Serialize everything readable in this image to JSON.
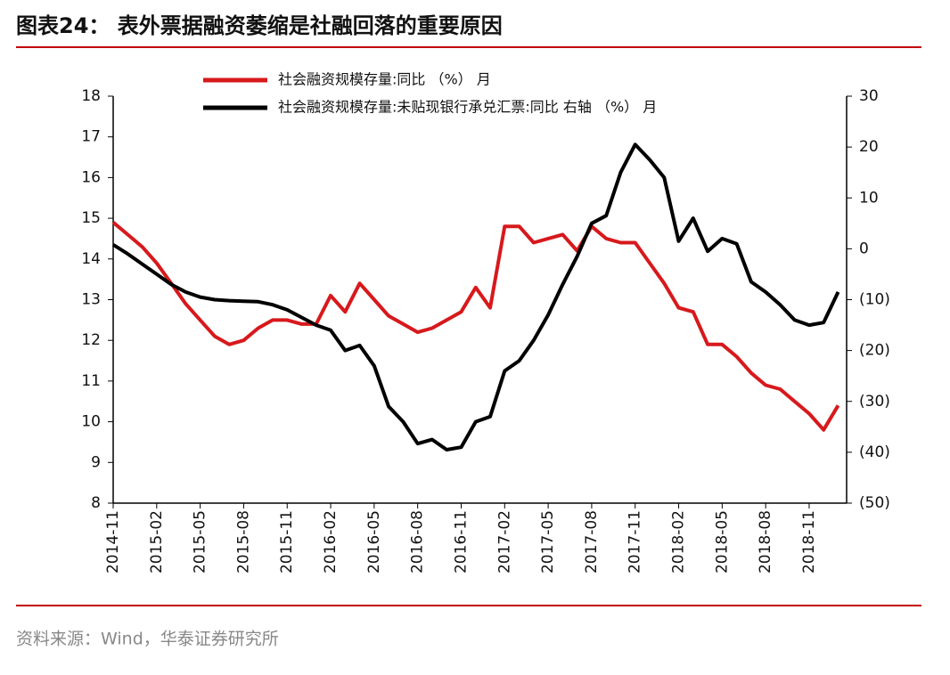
{
  "chart_data": {
    "type": "line",
    "title": "图表24：  表外票据融资萎缩是社融回落的重要原因",
    "source": "资料来源：Wind，华泰证券研究所",
    "categories": [
      "2014-11",
      null,
      null,
      "2015-02",
      null,
      null,
      "2015-05",
      null,
      null,
      "2015-08",
      null,
      null,
      "2015-11",
      null,
      null,
      "2016-02",
      null,
      null,
      "2016-05",
      null,
      null,
      "2016-08",
      null,
      null,
      "2016-11",
      null,
      null,
      "2017-02",
      null,
      null,
      "2017-05",
      null,
      null,
      "2017-08",
      null,
      null,
      "2017-11",
      null,
      null,
      "2018-02",
      null,
      null,
      "2018-05",
      null,
      null,
      "2018-08",
      null,
      null,
      "2018-11",
      null,
      null
    ],
    "series": [
      {
        "name": "社会融资规模存量:同比 （%） 月",
        "color": "#d7191c",
        "values": [
          14.9,
          14.6,
          14.3,
          13.9,
          13.4,
          12.9,
          12.5,
          12.1,
          11.9,
          12.0,
          12.3,
          12.5,
          12.5,
          12.4,
          12.4,
          13.1,
          12.7,
          13.4,
          13.0,
          12.6,
          12.4,
          12.2,
          12.3,
          12.5,
          12.7,
          13.3,
          12.8,
          14.8,
          14.8,
          14.4,
          14.5,
          14.6,
          14.2,
          14.8,
          14.5,
          14.4,
          14.4,
          13.9,
          13.4,
          12.8,
          12.7,
          11.9,
          11.9,
          11.6,
          11.2,
          10.9,
          10.8,
          10.5,
          10.2,
          9.8,
          10.4
        ]
      },
      {
        "name": "社会融资规模存量:未贴现银行承兑汇票:同比 右轴 （%） 月",
        "color": "#000000",
        "axis": "y2",
        "values": [
          0.8,
          -1,
          -3,
          -5,
          -7,
          -8.5,
          -9.5,
          -10,
          -10.2,
          -10.3,
          -10.4,
          -11,
          -12,
          -13.5,
          -15,
          -16,
          -20,
          -19,
          -23,
          -31,
          -34,
          -38.3,
          -37.5,
          -39.5,
          -39,
          -34,
          -33,
          -24,
          -22,
          -18,
          -13,
          -7,
          -1.5,
          5,
          6.5,
          15,
          20.5,
          17.5,
          14,
          1.5,
          6,
          -0.5,
          2,
          1,
          -6.5,
          -8.5,
          -11,
          -14,
          -15,
          -14.5,
          -8.5
        ]
      }
    ],
    "ylim": [
      8,
      18
    ],
    "yticks": [
      8,
      9,
      10,
      11,
      12,
      13,
      14,
      15,
      16,
      17,
      18
    ],
    "y2lim": [
      -50,
      30
    ],
    "y2ticks": [
      {
        "value": -50,
        "label": "(50)"
      },
      {
        "value": -40,
        "label": "(40)"
      },
      {
        "value": -30,
        "label": "(30)"
      },
      {
        "value": -20,
        "label": "(20)"
      },
      {
        "value": -10,
        "label": "(10)"
      },
      0,
      10,
      20,
      30
    ]
  }
}
